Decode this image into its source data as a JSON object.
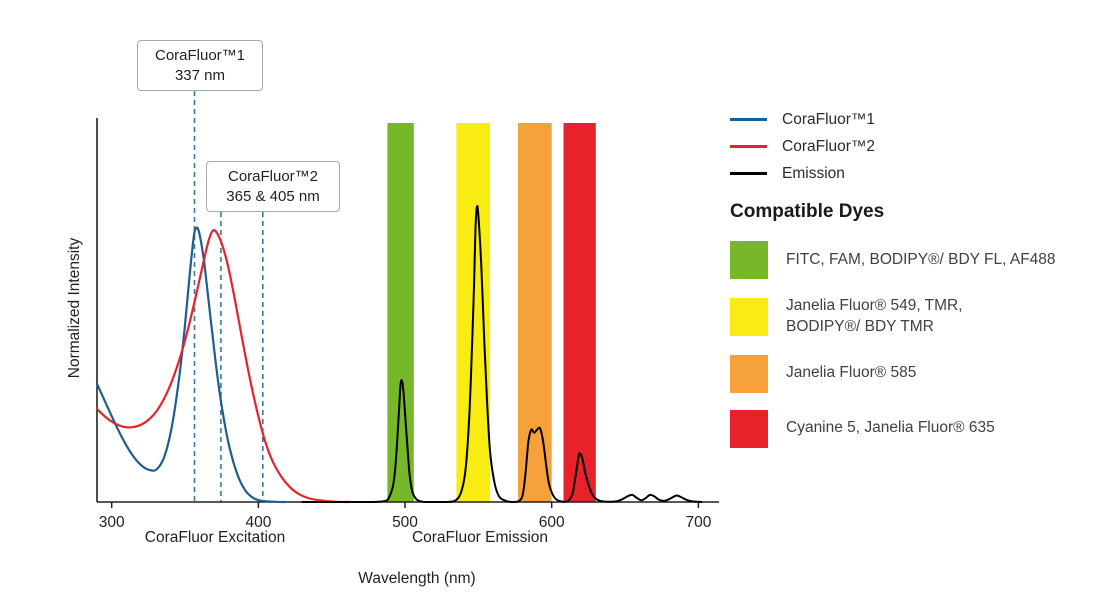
{
  "annotations": [
    {
      "line1": "CoraFluor™1",
      "line2": "337 nm"
    },
    {
      "line1": "CoraFluor™2",
      "line2": "365 & 405 nm"
    }
  ],
  "legend": {
    "lines": [
      {
        "label": "CoraFluor™1",
        "color": "#1e5d8d"
      },
      {
        "label": "CoraFluor™2",
        "color": "#e8222a"
      },
      {
        "label": "Emission",
        "color": "#000000"
      }
    ],
    "dyes_heading": "Compatible Dyes",
    "dyes": [
      {
        "label": "FITC, FAM, BODIPY®/ BDY FL, AF488",
        "color": "#76b82a"
      },
      {
        "label": "Janelia Fluor® 549, TMR,\nBODIPY®/ BDY TMR",
        "color": "#f8ec12"
      },
      {
        "label": "Janelia Fluor® 585",
        "color": "#f6a13b"
      },
      {
        "label": "Cyanine 5, Janelia Fluor® 635",
        "color": "#e8222a"
      }
    ]
  },
  "chart_data": {
    "type": "line",
    "title": "",
    "xlabel": "Wavelength (nm)",
    "ylabel": "Normalized Intensity",
    "xlim": [
      290,
      712
    ],
    "ylim": [
      0,
      1.05
    ],
    "x_ticks": [
      300,
      400,
      500,
      600,
      700
    ],
    "grid": false,
    "legend_position": "right",
    "region_labels": [
      {
        "text": "CoraFluor Excitation"
      },
      {
        "text": "CoraFluor Emission"
      }
    ],
    "vline_color": "#3c74a6",
    "axis_color": "#231f20",
    "vlines": [
      {
        "nm": 337,
        "x_draw": 356.5,
        "annotation": 0
      },
      {
        "nm": 365,
        "x_draw": 374.5,
        "annotation": 1
      },
      {
        "nm": 405,
        "x_draw": 403.0,
        "annotation": 1
      }
    ],
    "bands": [
      {
        "name": "green",
        "x1": 488,
        "x2": 506,
        "color": "#76b82a"
      },
      {
        "name": "yellow",
        "x1": 535,
        "x2": 558,
        "color": "#f8ec12"
      },
      {
        "name": "orange",
        "x1": 577,
        "x2": 600,
        "color": "#f6a13b"
      },
      {
        "name": "red",
        "x1": 608,
        "x2": 630,
        "color": "#e8222a"
      }
    ],
    "series": [
      {
        "name": "CoraFluor™1",
        "color": "#1e5d8d",
        "width": 2.2,
        "points": [
          [
            290,
            0.4
          ],
          [
            296,
            0.335
          ],
          [
            302,
            0.27
          ],
          [
            308,
            0.21
          ],
          [
            314,
            0.16
          ],
          [
            320,
            0.125
          ],
          [
            326,
            0.108
          ],
          [
            331,
            0.112
          ],
          [
            336,
            0.155
          ],
          [
            341,
            0.255
          ],
          [
            346,
            0.42
          ],
          [
            350,
            0.6
          ],
          [
            353,
            0.76
          ],
          [
            356,
            0.9
          ],
          [
            358,
            0.93
          ],
          [
            360,
            0.905
          ],
          [
            363,
            0.815
          ],
          [
            366,
            0.685
          ],
          [
            369,
            0.555
          ],
          [
            372,
            0.43
          ],
          [
            375,
            0.325
          ],
          [
            379,
            0.215
          ],
          [
            383,
            0.135
          ],
          [
            387,
            0.077
          ],
          [
            391,
            0.04
          ],
          [
            395,
            0.019
          ],
          [
            399,
            0.008
          ],
          [
            404,
            0.003
          ],
          [
            410,
            0.001
          ],
          [
            418,
            0
          ]
        ]
      },
      {
        "name": "CoraFluor™2",
        "color": "#e8222a",
        "width": 2.2,
        "points": [
          [
            290,
            0.315
          ],
          [
            297,
            0.283
          ],
          [
            304,
            0.262
          ],
          [
            311,
            0.253
          ],
          [
            318,
            0.258
          ],
          [
            325,
            0.278
          ],
          [
            332,
            0.318
          ],
          [
            339,
            0.385
          ],
          [
            346,
            0.48
          ],
          [
            352,
            0.585
          ],
          [
            357,
            0.69
          ],
          [
            362,
            0.8
          ],
          [
            366,
            0.885
          ],
          [
            369,
            0.92
          ],
          [
            372,
            0.91
          ],
          [
            376,
            0.862
          ],
          [
            380,
            0.785
          ],
          [
            385,
            0.66
          ],
          [
            390,
            0.525
          ],
          [
            395,
            0.4
          ],
          [
            400,
            0.29
          ],
          [
            405,
            0.2
          ],
          [
            410,
            0.135
          ],
          [
            416,
            0.083
          ],
          [
            422,
            0.048
          ],
          [
            428,
            0.026
          ],
          [
            435,
            0.012
          ],
          [
            443,
            0.005
          ],
          [
            452,
            0.001
          ],
          [
            462,
            0
          ]
        ]
      },
      {
        "name": "Emission",
        "color": "#000000",
        "width": 2,
        "points": [
          [
            430,
            0
          ],
          [
            455,
            0
          ],
          [
            478,
            0
          ],
          [
            486,
            0.003
          ],
          [
            489,
            0.015
          ],
          [
            492,
            0.06
          ],
          [
            494,
            0.155
          ],
          [
            496,
            0.32
          ],
          [
            497,
            0.4
          ],
          [
            498,
            0.41
          ],
          [
            499,
            0.37
          ],
          [
            501,
            0.23
          ],
          [
            503,
            0.1
          ],
          [
            505,
            0.035
          ],
          [
            508,
            0.008
          ],
          [
            512,
            0.001
          ],
          [
            518,
            0
          ],
          [
            528,
            0
          ],
          [
            534,
            0.004
          ],
          [
            538,
            0.03
          ],
          [
            541,
            0.1
          ],
          [
            543,
            0.22
          ],
          [
            545,
            0.43
          ],
          [
            547,
            0.73
          ],
          [
            548,
            0.92
          ],
          [
            549,
            1.0
          ],
          [
            550,
            0.97
          ],
          [
            552,
            0.8
          ],
          [
            554,
            0.55
          ],
          [
            556,
            0.33
          ],
          [
            558,
            0.17
          ],
          [
            561,
            0.065
          ],
          [
            564,
            0.02
          ],
          [
            568,
            0.005
          ],
          [
            573,
            0
          ],
          [
            577,
            0.002
          ],
          [
            580,
            0.02
          ],
          [
            582,
            0.09
          ],
          [
            584,
            0.2
          ],
          [
            586,
            0.245
          ],
          [
            588,
            0.235
          ],
          [
            590,
            0.245
          ],
          [
            592,
            0.25
          ],
          [
            594,
            0.21
          ],
          [
            596,
            0.135
          ],
          [
            598,
            0.065
          ],
          [
            601,
            0.022
          ],
          [
            604,
            0.006
          ],
          [
            608,
            0.001
          ],
          [
            611,
            0.003
          ],
          [
            614,
            0.025
          ],
          [
            616,
            0.08
          ],
          [
            618,
            0.145
          ],
          [
            619,
            0.165
          ],
          [
            621,
            0.145
          ],
          [
            623,
            0.095
          ],
          [
            626,
            0.045
          ],
          [
            629,
            0.016
          ],
          [
            633,
            0.004
          ],
          [
            638,
            0.001
          ],
          [
            644,
            0.002
          ],
          [
            648,
            0.009
          ],
          [
            652,
            0.02
          ],
          [
            655,
            0.024
          ],
          [
            658,
            0.014
          ],
          [
            661,
            0.006
          ],
          [
            664,
            0.013
          ],
          [
            667,
            0.024
          ],
          [
            670,
            0.019
          ],
          [
            673,
            0.008
          ],
          [
            677,
            0.004
          ],
          [
            681,
            0.012
          ],
          [
            685,
            0.022
          ],
          [
            688,
            0.017
          ],
          [
            692,
            0.007
          ],
          [
            696,
            0.002
          ],
          [
            702,
            0
          ]
        ]
      }
    ]
  }
}
